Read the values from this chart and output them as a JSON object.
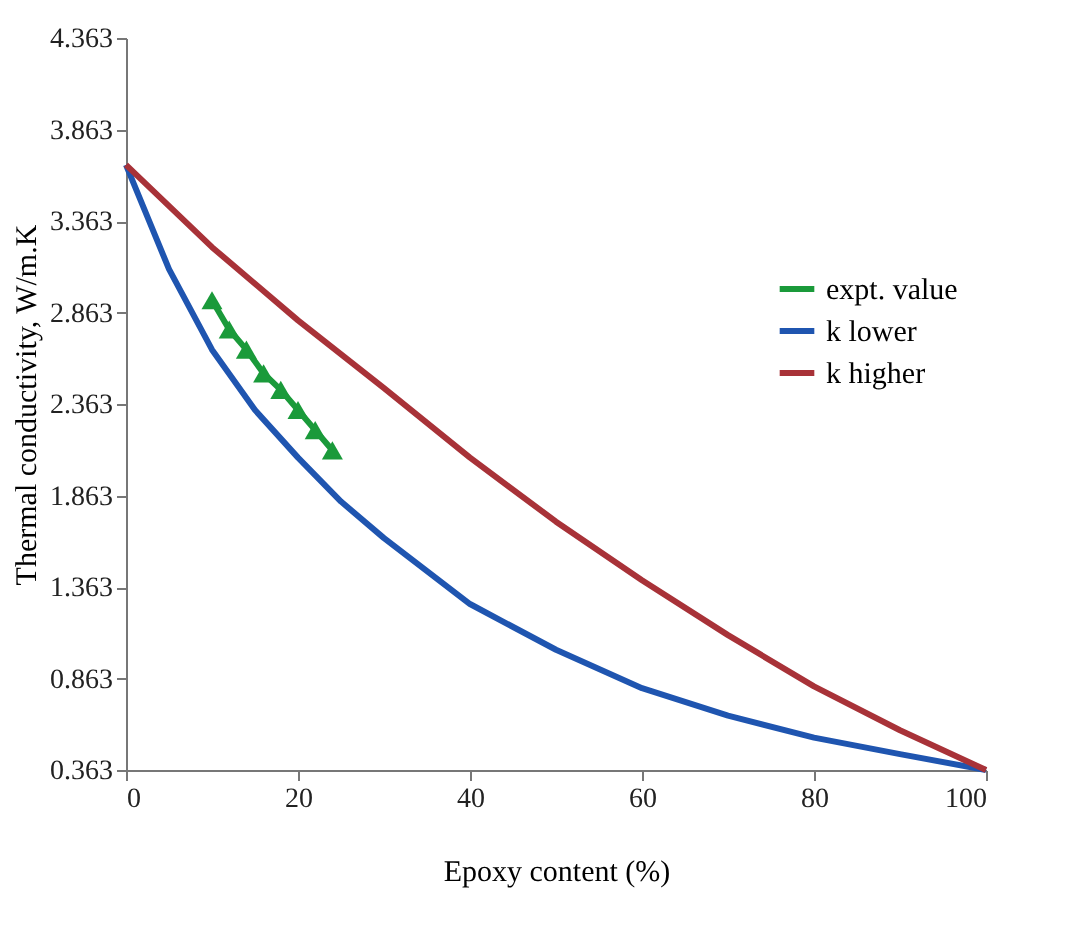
{
  "chart_data": {
    "type": "line",
    "xlabel": "Epoxy content (%)",
    "ylabel": "Thermal conductivity, W/m.K",
    "xlim": [
      0,
      100
    ],
    "xticks": [
      0,
      20,
      40,
      60,
      80,
      100
    ],
    "ylim": [
      0.363,
      4.363
    ],
    "yticks": [
      0.363,
      0.863,
      1.363,
      1.863,
      2.363,
      2.863,
      3.363,
      3.863,
      4.363
    ],
    "grid": false,
    "legend": "right",
    "line_style": "solid",
    "series": [
      {
        "name": "expt. value",
        "color": "#1a9a3a",
        "marker": "triangle",
        "x": [
          10,
          12,
          14,
          16,
          18,
          20,
          22,
          24
        ],
        "values": [
          2.93,
          2.77,
          2.66,
          2.53,
          2.44,
          2.33,
          2.22,
          2.11
        ]
      },
      {
        "name": "k lower",
        "color": "#1f55b0",
        "marker": "none",
        "x": [
          0,
          5,
          10,
          15,
          20,
          25,
          30,
          40,
          50,
          60,
          70,
          80,
          90,
          100
        ],
        "values": [
          3.67,
          3.1,
          2.66,
          2.33,
          2.07,
          1.83,
          1.63,
          1.27,
          1.02,
          0.81,
          0.66,
          0.54,
          0.45,
          0.363
        ]
      },
      {
        "name": "k higher",
        "color": "#a83238",
        "marker": "none",
        "x": [
          0,
          10,
          20,
          30,
          40,
          50,
          60,
          70,
          80,
          90,
          100
        ],
        "values": [
          3.67,
          3.22,
          2.82,
          2.45,
          2.07,
          1.72,
          1.4,
          1.1,
          0.82,
          0.58,
          0.363
        ]
      }
    ]
  }
}
